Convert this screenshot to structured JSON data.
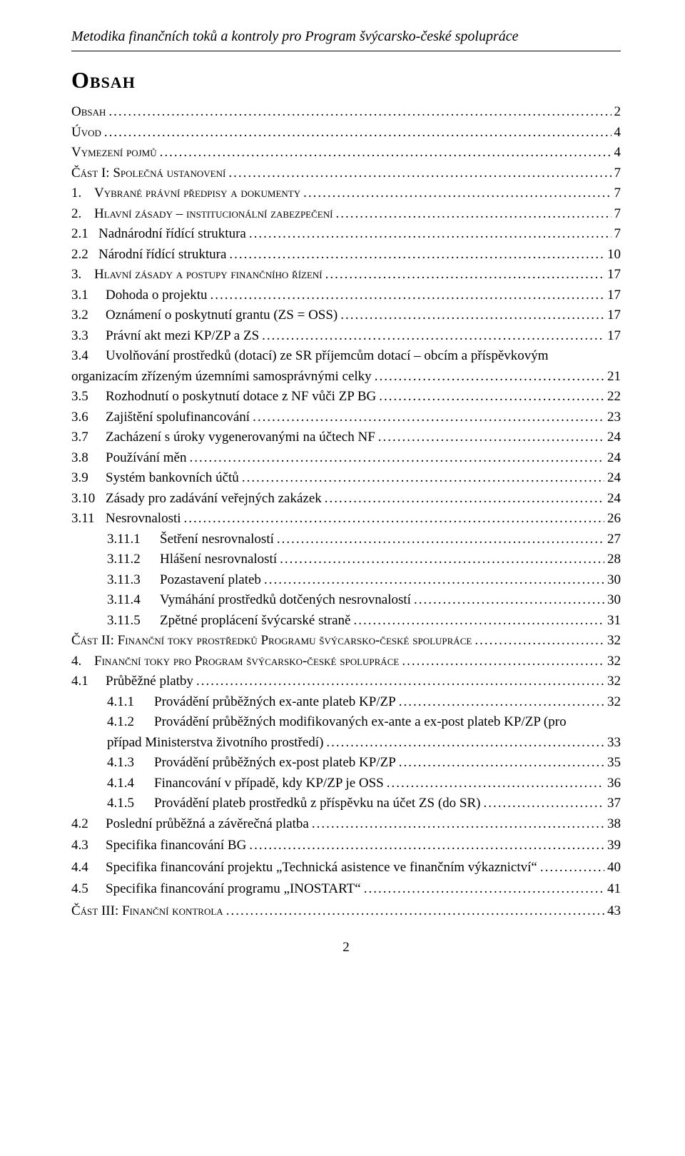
{
  "header": "Metodika finančních toků a kontroly pro Program švýcarsko-české spolupráce",
  "main_heading": "Obsah",
  "page_number": "2",
  "toc": [
    {
      "cls": "ind0",
      "sc": true,
      "num": "",
      "nw": "",
      "label": "Obsah",
      "pg": "2"
    },
    {
      "cls": "ind0",
      "sc": true,
      "num": "",
      "nw": "",
      "label": "Úvod",
      "pg": "4"
    },
    {
      "cls": "ind0",
      "sc": true,
      "num": "",
      "nw": "",
      "label": "Vymezení pojmů",
      "pg": "4"
    },
    {
      "cls": "ind0",
      "sc": true,
      "num": "",
      "nw": "",
      "label": "Část I: Společná ustanovení",
      "pg": "7"
    },
    {
      "cls": "ind1",
      "sc": true,
      "num": "1.",
      "nw": "w-top",
      "label": "Vybrané právní předpisy a dokumenty",
      "pg": "7"
    },
    {
      "cls": "ind1",
      "sc": true,
      "num": "2.",
      "nw": "w-top",
      "label": "Hlavní zásady – institucionální zabezpečení",
      "pg": "7"
    },
    {
      "cls": "ind2a",
      "sc": false,
      "num": "2.1",
      "nw": "w-a",
      "label": "Nadnárodní řídící struktura",
      "pg": "7"
    },
    {
      "cls": "ind2a",
      "sc": false,
      "num": "2.2",
      "nw": "w-a",
      "label": "Národní řídící struktura",
      "pg": "10"
    },
    {
      "cls": "ind1",
      "sc": true,
      "num": "3.",
      "nw": "w-top",
      "label": "Hlavní zásady a postupy finančního řízení",
      "pg": "17"
    },
    {
      "cls": "ind2",
      "sc": false,
      "num": "3.1",
      "nw": "w-b",
      "label": "Dohoda o projektu",
      "pg": "17"
    },
    {
      "cls": "ind2",
      "sc": false,
      "num": "3.2",
      "nw": "w-b",
      "label": "Oznámení o poskytnutí grantu (ZS = OSS)",
      "pg": "17"
    },
    {
      "cls": "ind2",
      "sc": false,
      "num": "3.3",
      "nw": "w-b",
      "label": "Právní akt mezi KP/ZP a ZS",
      "pg": "17"
    },
    {
      "cls": "ind-hang",
      "sc": false,
      "num": "3.4",
      "nw": "w-b",
      "label": "Uvolňování prostředků (dotací) ze SR příjemcům dotací – obcím a příspěvkovým",
      "pg": "",
      "nobreak": true
    },
    {
      "cls": "ind0",
      "sc": false,
      "num": "",
      "nw": "",
      "label": "organizacím zřízeným územními samosprávnými celky",
      "pg": "21"
    },
    {
      "cls": "ind2",
      "sc": false,
      "num": "3.5",
      "nw": "w-b",
      "label": "Rozhodnutí o poskytnutí dotace z NF vůči ZP BG",
      "pg": "22"
    },
    {
      "cls": "ind2",
      "sc": false,
      "num": "3.6",
      "nw": "w-b",
      "label": "Zajištění spolufinancování",
      "pg": "23"
    },
    {
      "cls": "ind2",
      "sc": false,
      "num": "3.7",
      "nw": "w-b",
      "label": "Zacházení s úroky vygenerovanými na účtech NF",
      "pg": "24"
    },
    {
      "cls": "ind2",
      "sc": false,
      "num": "3.8",
      "nw": "w-b",
      "label": "Používání měn",
      "pg": "24"
    },
    {
      "cls": "ind2",
      "sc": false,
      "num": "3.9",
      "nw": "w-b",
      "label": "Systém bankovních účtů",
      "pg": "24"
    },
    {
      "cls": "ind2",
      "sc": false,
      "num": "3.10",
      "nw": "w-b",
      "label": "Zásady pro zadávání veřejných zakázek",
      "pg": "24"
    },
    {
      "cls": "ind2",
      "sc": false,
      "num": "3.11",
      "nw": "w-b",
      "label": "Nesrovnalosti",
      "pg": "26"
    },
    {
      "cls": "ind3",
      "sc": false,
      "num": "3.11.1",
      "nw": "w-c2",
      "label": "Šetření nesrovnalostí",
      "pg": "27"
    },
    {
      "cls": "ind3",
      "sc": false,
      "num": "3.11.2",
      "nw": "w-c2",
      "label": "Hlášení nesrovnalostí",
      "pg": "28"
    },
    {
      "cls": "ind3",
      "sc": false,
      "num": "3.11.3",
      "nw": "w-c2",
      "label": "Pozastavení plateb",
      "pg": "30"
    },
    {
      "cls": "ind3",
      "sc": false,
      "num": "3.11.4",
      "nw": "w-c2",
      "label": "Vymáhání prostředků dotčených nesrovnalostí",
      "pg": "30"
    },
    {
      "cls": "ind3",
      "sc": false,
      "num": "3.11.5",
      "nw": "w-c2",
      "label": "Zpětné proplácení švýcarské straně",
      "pg": "31"
    },
    {
      "cls": "ind0",
      "sc": true,
      "num": "",
      "nw": "",
      "label": "Část II: Finanční toky prostředků Programu švýcarsko-české spolupráce",
      "pg": "32"
    },
    {
      "cls": "ind1",
      "sc": true,
      "num": "4.",
      "nw": "w-top",
      "label": "Finanční toky pro Program švýcarsko-české spolupráce",
      "pg": "32"
    },
    {
      "cls": "ind2",
      "sc": false,
      "num": "4.1",
      "nw": "w-b",
      "label": "Průběžné platby",
      "pg": "32"
    },
    {
      "cls": "ind3",
      "sc": false,
      "num": "4.1.1",
      "nw": "w-d",
      "label": "Provádění průběžných ex-ante plateb KP/ZP",
      "pg": "32"
    },
    {
      "cls": "ind-hang",
      "sc": false,
      "num": "",
      "nw": "",
      "prefix3": true,
      "pnum": "4.1.2",
      "label": "Provádění průběžných modifikovaných ex-ante a ex-post plateb KP/ZP (pro",
      "pg": "",
      "nobreak": true
    },
    {
      "cls": "ind3",
      "sc": false,
      "num": "",
      "nw": "",
      "label": "případ Ministerstva životního prostředí)",
      "pg": "33"
    },
    {
      "cls": "ind3",
      "sc": false,
      "num": "4.1.3",
      "nw": "w-d",
      "label": "Provádění průběžných ex-post plateb KP/ZP",
      "pg": "35"
    },
    {
      "cls": "ind3",
      "sc": false,
      "num": "4.1.4",
      "nw": "w-d",
      "label": "Financování v případě, kdy KP/ZP je OSS",
      "pg": "36"
    },
    {
      "cls": "ind3",
      "sc": false,
      "num": "4.1.5",
      "nw": "w-d",
      "label": "Provádění plateb prostředků z příspěvku na účet ZS (do SR)",
      "pg": "37"
    },
    {
      "cls": "ind2",
      "sc": false,
      "num": "4.2",
      "nw": "w-b",
      "label": "Poslední průběžná a závěrečná platba",
      "pg": "38"
    },
    {
      "cls": "ind2 rowgap",
      "sc": false,
      "num": "4.3",
      "nw": "w-b",
      "label": "Specifika financování BG",
      "pg": "39"
    },
    {
      "cls": "ind2 rowgap",
      "sc": false,
      "num": "4.4",
      "nw": "w-b",
      "label": "Specifika financování projektu „Technická asistence ve finančním výkaznictví“",
      "pg": "40"
    },
    {
      "cls": "ind2 rowgap",
      "sc": false,
      "num": "4.5",
      "nw": "w-b",
      "label": "Specifika financování programu „INOSTART“",
      "pg": "41"
    },
    {
      "cls": "ind0 rowgap",
      "sc": true,
      "num": "",
      "nw": "",
      "label": "Část III: Finanční kontrola",
      "pg": "43"
    }
  ]
}
